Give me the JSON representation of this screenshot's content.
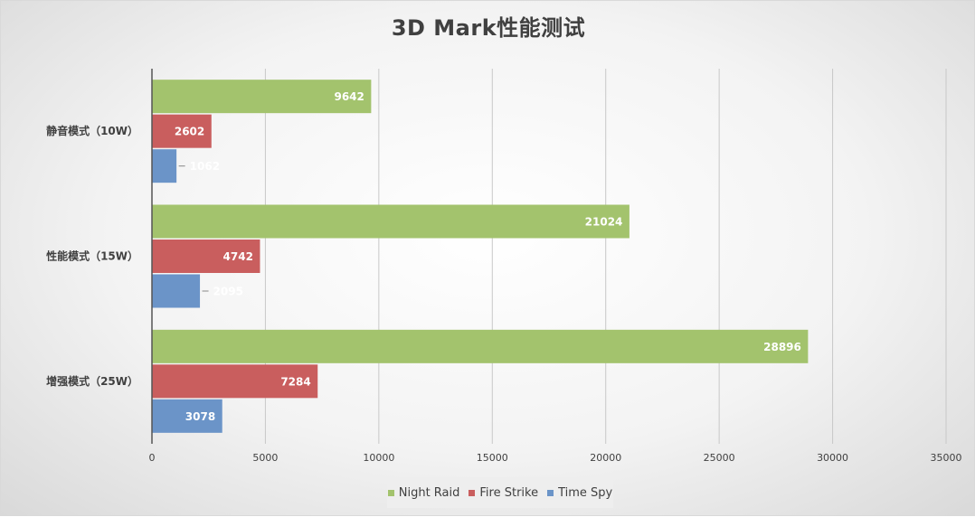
{
  "colors": {
    "night_raid": "#a3c36d",
    "fire_strike": "#c95e5e",
    "time_spy": "#6b94c8",
    "axis": "#555555",
    "grid": "#c8c8c8",
    "text": "#404040"
  },
  "chart_data": {
    "type": "bar",
    "orientation": "horizontal",
    "title": "3D Mark性能测试",
    "categories": [
      "静音模式（10W）",
      "性能模式（15W）",
      "增强模式（25W）"
    ],
    "series": [
      {
        "name": "Night Raid",
        "values": [
          9642,
          21024,
          28896
        ]
      },
      {
        "name": "Fire Strike",
        "values": [
          2602,
          4742,
          7284
        ]
      },
      {
        "name": "Time Spy",
        "values": [
          1062,
          2095,
          3078
        ]
      }
    ],
    "xlim": [
      0,
      35000
    ],
    "xticks": [
      0,
      5000,
      10000,
      15000,
      20000,
      25000,
      30000,
      35000
    ],
    "xlabel": "",
    "ylabel": "",
    "grid": true,
    "legend_position": "bottom",
    "data_labels": true
  }
}
